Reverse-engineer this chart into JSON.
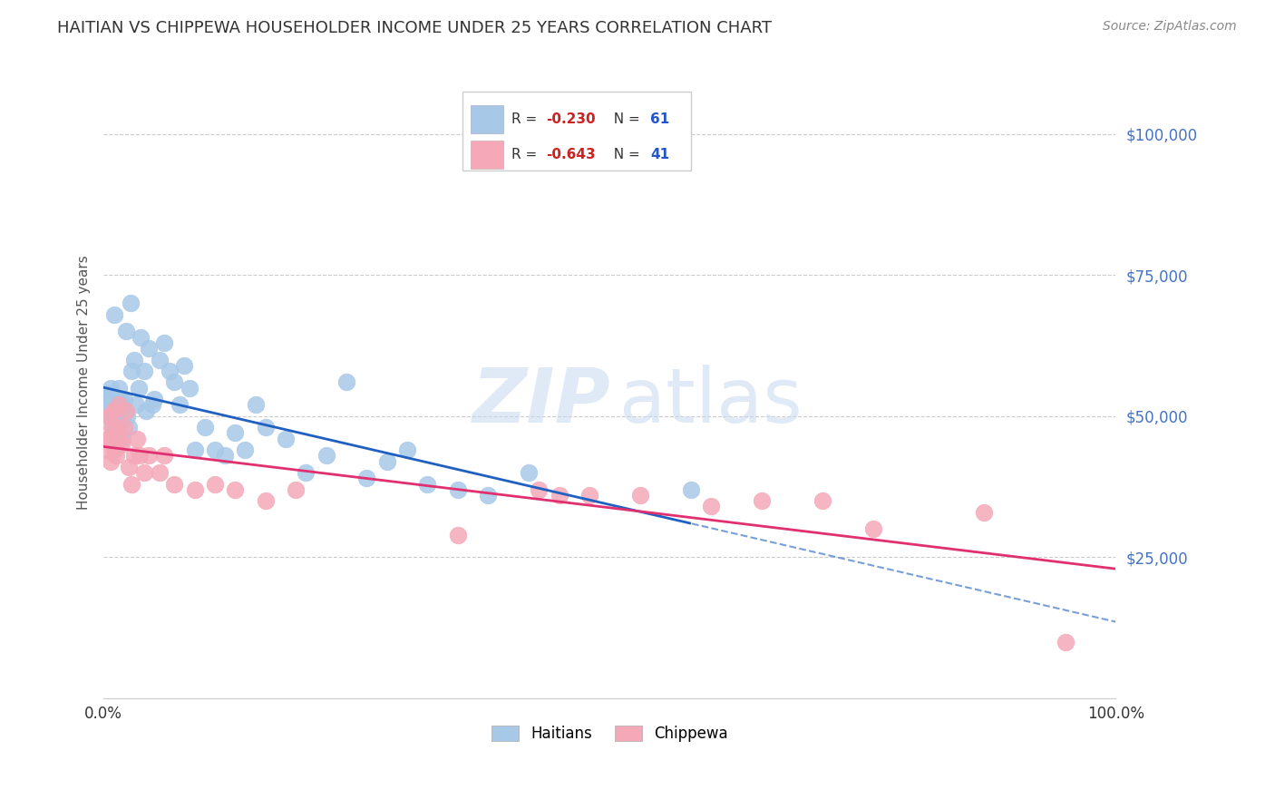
{
  "title": "HAITIAN VS CHIPPEWA HOUSEHOLDER INCOME UNDER 25 YEARS CORRELATION CHART",
  "source": "Source: ZipAtlas.com",
  "ylabel": "Householder Income Under 25 years",
  "legend_label1": "Haitians",
  "legend_label2": "Chippewa",
  "R1": -0.23,
  "N1": 61,
  "R2": -0.643,
  "N2": 41,
  "color1": "#a8c8e8",
  "color2": "#f4a8b8",
  "line_color1": "#2060c0",
  "line_color2": "#e03070",
  "background": "#ffffff",
  "xlim": [
    0.0,
    1.0
  ],
  "ylim": [
    0,
    112000
  ],
  "yticks": [
    0,
    25000,
    50000,
    75000,
    100000
  ],
  "ytick_labels": [
    "",
    "$25,000",
    "$50,000",
    "$75,000",
    "$100,000"
  ],
  "xtick_labels": [
    "0.0%",
    "100.0%"
  ],
  "haitian_x": [
    0.002,
    0.003,
    0.004,
    0.005,
    0.005,
    0.006,
    0.007,
    0.008,
    0.009,
    0.01,
    0.011,
    0.012,
    0.013,
    0.015,
    0.016,
    0.017,
    0.018,
    0.019,
    0.02,
    0.021,
    0.022,
    0.023,
    0.025,
    0.027,
    0.028,
    0.03,
    0.032,
    0.035,
    0.037,
    0.04,
    0.042,
    0.045,
    0.048,
    0.05,
    0.055,
    0.06,
    0.065,
    0.07,
    0.075,
    0.08,
    0.085,
    0.09,
    0.1,
    0.11,
    0.12,
    0.13,
    0.14,
    0.15,
    0.16,
    0.18,
    0.2,
    0.22,
    0.24,
    0.26,
    0.28,
    0.3,
    0.32,
    0.35,
    0.38,
    0.42,
    0.58
  ],
  "haitian_y": [
    53000,
    51000,
    50000,
    52000,
    54000,
    53000,
    55000,
    54000,
    48000,
    50000,
    68000,
    50000,
    46000,
    55000,
    51000,
    53000,
    52000,
    46000,
    53000,
    51000,
    65000,
    50000,
    48000,
    70000,
    58000,
    60000,
    52000,
    55000,
    64000,
    58000,
    51000,
    62000,
    52000,
    53000,
    60000,
    63000,
    58000,
    56000,
    52000,
    59000,
    55000,
    44000,
    48000,
    44000,
    43000,
    47000,
    44000,
    52000,
    48000,
    46000,
    40000,
    43000,
    56000,
    39000,
    42000,
    44000,
    38000,
    37000,
    36000,
    40000,
    37000
  ],
  "chippewa_x": [
    0.003,
    0.004,
    0.005,
    0.006,
    0.007,
    0.008,
    0.01,
    0.011,
    0.012,
    0.014,
    0.015,
    0.016,
    0.018,
    0.02,
    0.022,
    0.025,
    0.028,
    0.03,
    0.033,
    0.036,
    0.04,
    0.045,
    0.055,
    0.06,
    0.07,
    0.09,
    0.11,
    0.13,
    0.16,
    0.19,
    0.35,
    0.43,
    0.45,
    0.48,
    0.53,
    0.6,
    0.65,
    0.71,
    0.76,
    0.87,
    0.95
  ],
  "chippewa_y": [
    46000,
    44000,
    50000,
    46000,
    42000,
    48000,
    51000,
    44000,
    43000,
    48000,
    52000,
    46000,
    45000,
    48000,
    51000,
    41000,
    38000,
    43000,
    46000,
    43000,
    40000,
    43000,
    40000,
    43000,
    38000,
    37000,
    38000,
    37000,
    35000,
    37000,
    29000,
    37000,
    36000,
    36000,
    36000,
    34000,
    35000,
    35000,
    30000,
    33000,
    10000
  ]
}
